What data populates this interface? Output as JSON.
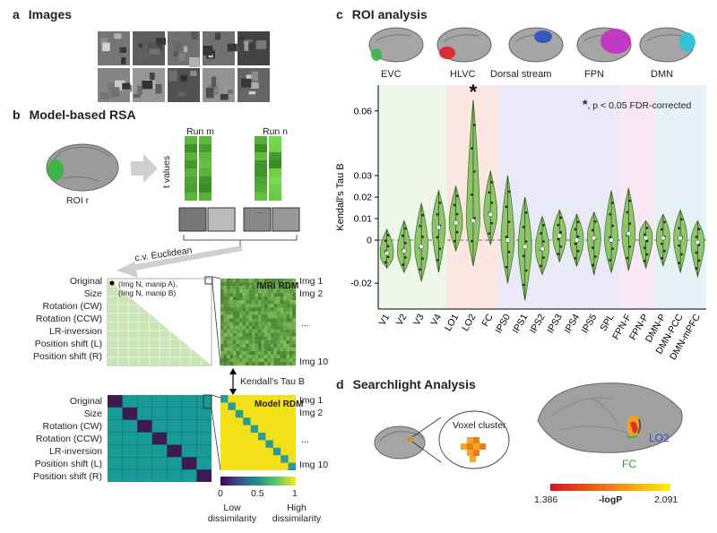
{
  "panel_a": {
    "letter": "a",
    "title": "Images"
  },
  "panel_b": {
    "letter": "b",
    "title": "Model-based RSA",
    "roi_label": "ROI r",
    "run_m": "Run m",
    "run_n": "Run n",
    "t_values": "t values",
    "cv_euclidean": "c.v. Euclidean",
    "conditions": [
      "Original",
      "Size",
      "Rotation (CW)",
      "Rotation (CCW)",
      "LR-inversion",
      "Position shift (L)",
      "Position shift (R)"
    ],
    "pair_note": "(Img N, manip A),\n(Img N, manip B)",
    "fmri_rdm": "fMRI RDM",
    "model_rdm": "Model RDM",
    "img1": "Img 1",
    "img2": "Img 2",
    "dots": "...",
    "img10": "Img 10",
    "kendall": "Kendall's Tau B",
    "colorbar_ticks": [
      "0",
      "0.5",
      "1"
    ],
    "low": "Low\ndissimilarity",
    "high": "High\ndissimilarity"
  },
  "panel_c": {
    "letter": "c",
    "title": "ROI analysis",
    "brain_labels": [
      "EVC",
      "HLVC",
      "Dorsal stream",
      "FPN",
      "DMN"
    ],
    "brain_colors": [
      "#3fb449",
      "#e0202a",
      "#2e4fc0",
      "#c42fc8",
      "#27c4d9"
    ],
    "significance_note": "p < 0.05 FDR-corrected",
    "star": "*"
  },
  "panel_d": {
    "letter": "d",
    "title": "Searchlight Analysis",
    "voxel_cluster": "Voxel cluster",
    "lo2": "LO2",
    "fc": "FC",
    "colorbar_min": "1.386",
    "colorbar_label": "-logP",
    "colorbar_max": "2.091"
  },
  "chart_data": {
    "type": "violin",
    "ylabel": "Kendall's Tau B",
    "ylim": [
      -0.032,
      0.072
    ],
    "yticks": [
      -0.02,
      0,
      0.01,
      0.02,
      0.03,
      0.06
    ],
    "categories": [
      "V1",
      "V2",
      "V3",
      "V4",
      "LO1",
      "LO2",
      "FC",
      "IPS0",
      "IPS1",
      "IPS2",
      "IPS3",
      "IPS4",
      "IPS5",
      "SPL",
      "FPN-F",
      "FPN-P",
      "DMN-P",
      "DMN-PCC",
      "DMN-mPFC"
    ],
    "medians": [
      -0.006,
      -0.005,
      -0.003,
      0.006,
      0.008,
      0.009,
      0.012,
      0.0,
      -0.003,
      -0.004,
      0.002,
      0.0,
      0.001,
      0.0,
      0.003,
      0.001,
      0.001,
      0.001,
      -0.001
    ],
    "min": [
      -0.013,
      -0.015,
      -0.019,
      -0.015,
      -0.005,
      -0.012,
      -0.002,
      -0.02,
      -0.028,
      -0.016,
      -0.01,
      -0.012,
      -0.016,
      -0.015,
      -0.014,
      -0.013,
      -0.012,
      -0.015,
      -0.017
    ],
    "max": [
      0.005,
      0.009,
      0.017,
      0.023,
      0.025,
      0.065,
      0.032,
      0.03,
      0.02,
      0.011,
      0.014,
      0.012,
      0.013,
      0.023,
      0.024,
      0.009,
      0.012,
      0.014,
      0.009
    ],
    "significant": [
      false,
      false,
      false,
      false,
      false,
      true,
      false,
      false,
      false,
      false,
      false,
      false,
      false,
      false,
      false,
      false,
      false,
      false,
      false
    ],
    "groups": [
      {
        "name": "EVC",
        "from": 0,
        "to": 3,
        "color": "#eef5e9"
      },
      {
        "name": "HLVC",
        "from": 4,
        "to": 6,
        "color": "#fce6e1"
      },
      {
        "name": "Dorsal stream",
        "from": 7,
        "to": 13,
        "color": "#e9e9f8"
      },
      {
        "name": "FPN",
        "from": 14,
        "to": 15,
        "color": "#f7e8f4"
      },
      {
        "name": "DMN",
        "from": 16,
        "to": 18,
        "color": "#e6f1f8"
      }
    ]
  }
}
